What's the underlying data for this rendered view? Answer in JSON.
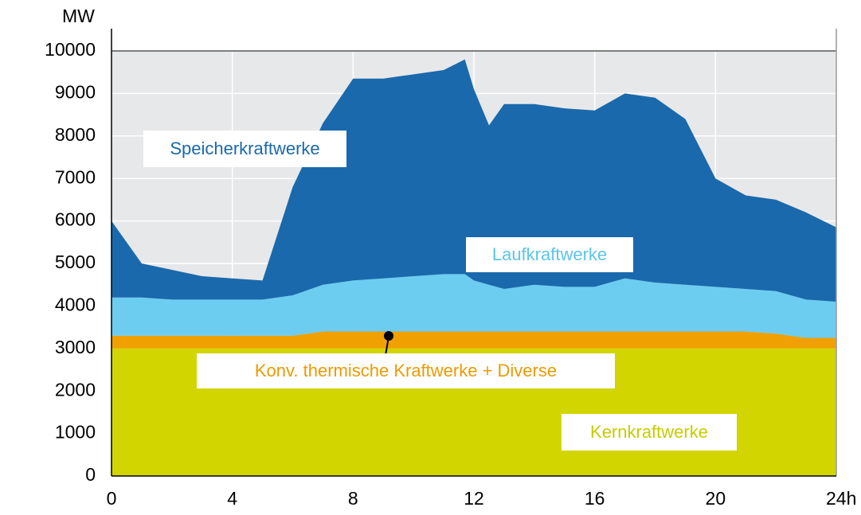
{
  "chart_data": {
    "type": "stacked_area",
    "y_label": "MW",
    "x": [
      0,
      1,
      2,
      3,
      4,
      5,
      6,
      7,
      8,
      9,
      10,
      11,
      11.7,
      12,
      12.5,
      13,
      14,
      15,
      16,
      17,
      18,
      19,
      20,
      21,
      22,
      23,
      24
    ],
    "series": [
      {
        "name": "Kernkraftwerke",
        "color": "#d2d500",
        "label_color": "#c8cc00",
        "values": [
          3000,
          3000,
          3000,
          3000,
          3000,
          3000,
          3000,
          3000,
          3000,
          3000,
          3000,
          3000,
          3000,
          3000,
          3000,
          3000,
          3000,
          3000,
          3000,
          3000,
          3000,
          3000,
          3000,
          3000,
          3000,
          3000,
          3000
        ]
      },
      {
        "name": "Konv. thermische Kraftwerke + Diverse",
        "color": "#f0a000",
        "label_color": "#ec9a00",
        "values": [
          300,
          300,
          300,
          300,
          300,
          300,
          300,
          400,
          400,
          400,
          400,
          400,
          400,
          400,
          400,
          400,
          400,
          400,
          400,
          400,
          400,
          400,
          400,
          400,
          350,
          250,
          250
        ]
      },
      {
        "name": "Laufkraftwerke",
        "color": "#6ccdf0",
        "label_color": "#5cc4ec",
        "values": [
          900,
          900,
          850,
          850,
          850,
          850,
          950,
          1100,
          1200,
          1250,
          1300,
          1350,
          1350,
          1200,
          1100,
          1000,
          1100,
          1050,
          1050,
          1250,
          1150,
          1100,
          1050,
          1000,
          1000,
          900,
          850
        ]
      },
      {
        "name": "Speicherkraftwerke",
        "color": "#1a69ac",
        "label_color": "#1a69ac",
        "values": [
          1800,
          800,
          700,
          550,
          500,
          450,
          2550,
          3800,
          4750,
          4700,
          4750,
          4800,
          5050,
          4500,
          3750,
          4350,
          4250,
          4200,
          4150,
          4350,
          4350,
          3900,
          2550,
          2200,
          2150,
          2050,
          1750
        ]
      }
    ],
    "xlim": [
      0,
      24
    ],
    "xticks": [
      0,
      4,
      8,
      12,
      16,
      20,
      {
        "value": 24,
        "label": "24h"
      }
    ],
    "ylim": [
      0,
      10000
    ],
    "yticks": [
      0,
      1000,
      2000,
      3000,
      4000,
      5000,
      6000,
      7000,
      8000,
      9000,
      10000
    ],
    "grid": true
  }
}
